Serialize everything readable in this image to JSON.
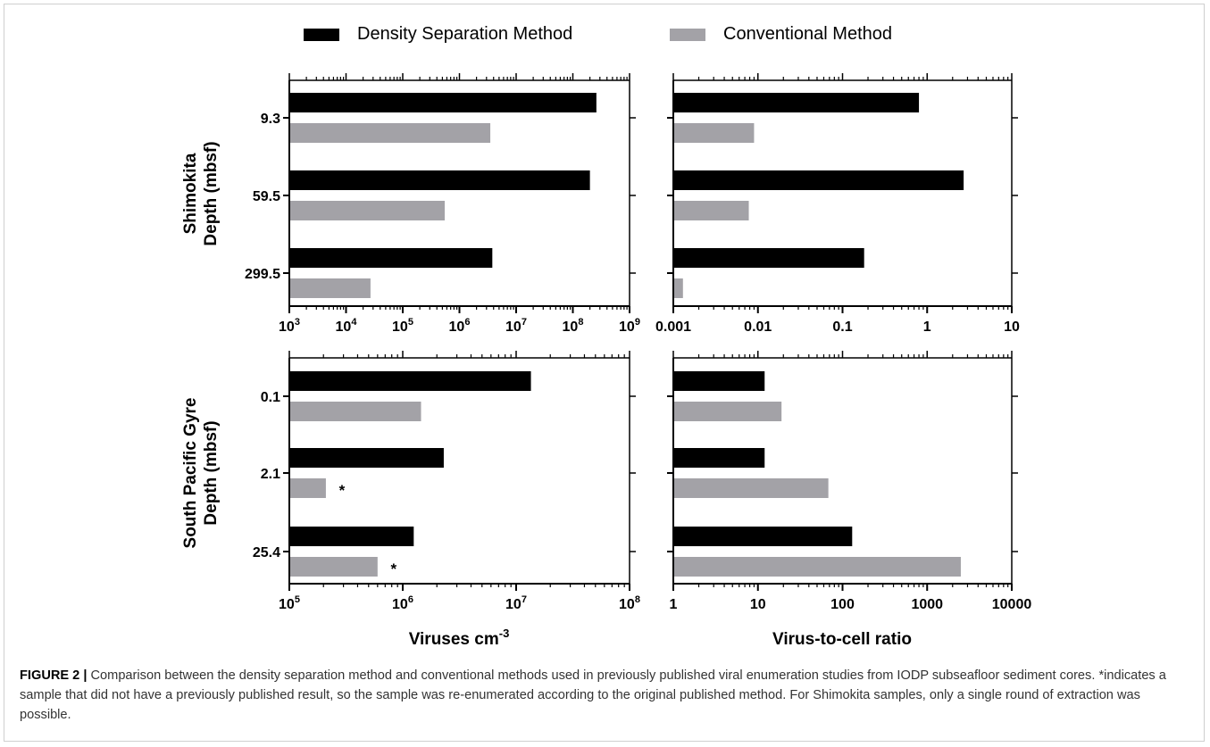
{
  "legend": [
    {
      "label": "Density Separation Method",
      "color": "#000000"
    },
    {
      "label": "Conventional Method",
      "color": "#a3a2a7"
    }
  ],
  "rows": [
    {
      "name": "Shimokita",
      "label": [
        "Shimokita",
        "Depth (mbsf)"
      ]
    },
    {
      "name": "SouthPacificGyre",
      "label": [
        "South Pacific Gyre",
        "Depth (mbsf)"
      ]
    }
  ],
  "xlabels": [
    "Viruses cm-3",
    "Virus-to-cell ratio"
  ],
  "caption": {
    "label": "FIGURE 2 |",
    "text": " Comparison between the density separation method and conventional methods used in previously published viral enumeration studies from IODP subseafloor sediment cores. *indicates a sample that did not have a previously published result, so the sample was re-enumerated according to the original published method. For Shimokita samples, only a single round of extraction was possible."
  },
  "chart_data": [
    {
      "type": "bar",
      "orientation": "horizontal",
      "panel": "Shimokita viruses",
      "categories": [
        "9.3",
        "59.5",
        "299.5"
      ],
      "series": [
        {
          "name": "Density Separation Method",
          "values": [
            260000000,
            200000000,
            3800000
          ]
        },
        {
          "name": "Conventional Method",
          "values": [
            3500000,
            550000,
            27000
          ]
        }
      ],
      "xscale": "log",
      "xlim": [
        1000,
        1000000000
      ],
      "xticklabels": [
        "10^3",
        "10^4",
        "10^5",
        "10^6",
        "10^7",
        "10^8",
        "10^9"
      ],
      "ylabel": "Shimokita Depth (mbsf)",
      "xlabel": "",
      "annotations": []
    },
    {
      "type": "bar",
      "orientation": "horizontal",
      "panel": "Shimokita ratio",
      "categories": [
        "9.3",
        "59.5",
        "299.5"
      ],
      "series": [
        {
          "name": "Density Separation Method",
          "values": [
            0.8,
            2.7,
            0.18
          ]
        },
        {
          "name": "Conventional Method",
          "values": [
            0.009,
            0.0078,
            0.0013
          ]
        }
      ],
      "xscale": "log",
      "xlim": [
        0.001,
        10
      ],
      "xticklabels": [
        "0.001",
        "0.01",
        "0.1",
        "1",
        "10"
      ],
      "xlabel": "",
      "annotations": []
    },
    {
      "type": "bar",
      "orientation": "horizontal",
      "panel": "South Pacific Gyre viruses",
      "categories": [
        "0.1",
        "2.1",
        "25.4"
      ],
      "series": [
        {
          "name": "Density Separation Method",
          "values": [
            13500000,
            2300000,
            1250000
          ]
        },
        {
          "name": "Conventional Method",
          "values": [
            1450000,
            210000,
            600000
          ]
        }
      ],
      "xscale": "log",
      "xlim": [
        100000,
        100000000
      ],
      "xticklabels": [
        "10^5",
        "10^6",
        "10^7",
        "10^8"
      ],
      "ylabel": "South Pacific Gyre Depth (mbsf)",
      "xlabel": "Viruses cm-3",
      "annotations": [
        {
          "category": "2.1",
          "series": "Conventional Method",
          "text": "*"
        },
        {
          "category": "25.4",
          "series": "Conventional Method",
          "text": "*"
        }
      ]
    },
    {
      "type": "bar",
      "orientation": "horizontal",
      "panel": "South Pacific Gyre ratio",
      "categories": [
        "0.1",
        "2.1",
        "25.4"
      ],
      "series": [
        {
          "name": "Density Separation Method",
          "values": [
            12,
            12,
            130
          ]
        },
        {
          "name": "Conventional Method",
          "values": [
            19,
            68,
            2500
          ]
        }
      ],
      "xscale": "log",
      "xlim": [
        1,
        10000
      ],
      "xticklabels": [
        "1",
        "10",
        "100",
        "1000",
        "10000"
      ],
      "xlabel": "Virus-to-cell ratio",
      "annotations": []
    }
  ]
}
